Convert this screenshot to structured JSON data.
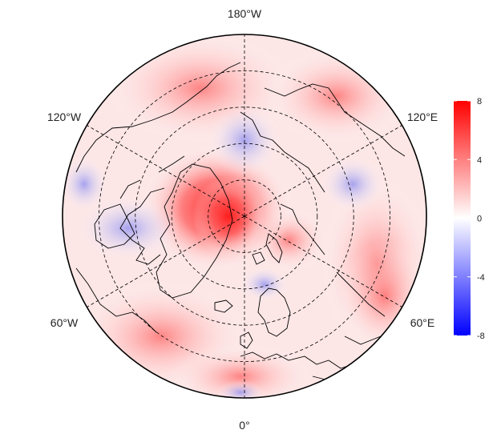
{
  "map": {
    "projection": "north-polar-stereographic",
    "longitude_labels": {
      "top": "180°W",
      "bottom": "0°",
      "upper_left": "120°W",
      "upper_right": "120°E",
      "lower_left": "60°W",
      "lower_right": "60°E"
    },
    "graticule": {
      "style": "dashed",
      "meridians_deg": [
        0,
        60,
        120,
        180,
        240,
        300
      ],
      "parallels_deg": [
        80,
        70,
        60,
        50
      ]
    }
  },
  "colorbar": {
    "ticks": [
      "8",
      "4",
      "0",
      "-4",
      "-8"
    ],
    "range": [
      -8,
      8
    ],
    "colors": {
      "high": "#ff0000",
      "mid": "#ffffff",
      "low": "#0000ff"
    }
  },
  "colors": {
    "coastline": "#000000",
    "graticule": "#000000",
    "frame": "#000000"
  }
}
